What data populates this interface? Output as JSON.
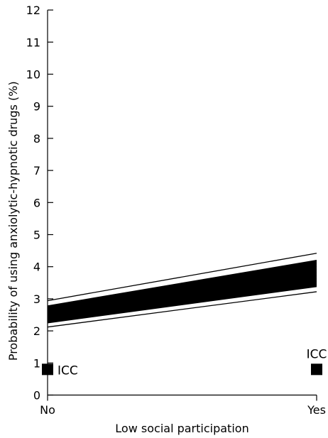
{
  "chart_data": {
    "type": "line",
    "title": "",
    "xlabel": "Low social participation",
    "ylabel": "Probability of using anxiolytic-hypnotic drugs (%)",
    "categories": [
      "No",
      "Yes"
    ],
    "ylim": [
      0,
      12
    ],
    "yticks": [
      0,
      1,
      2,
      3,
      4,
      5,
      6,
      7,
      8,
      9,
      10,
      11,
      12
    ],
    "grid": false,
    "series_band": {
      "description_none": "",
      "lines": [
        {
          "values": [
            2.12,
            3.22
          ]
        },
        {
          "values": [
            2.25,
            3.38
          ]
        },
        {
          "values": [
            2.32,
            3.45
          ]
        },
        {
          "values": [
            2.4,
            3.55
          ]
        },
        {
          "values": [
            2.47,
            3.63
          ]
        },
        {
          "values": [
            2.55,
            3.72
          ]
        },
        {
          "values": [
            2.6,
            3.82
          ]
        },
        {
          "values": [
            2.65,
            3.92
          ]
        },
        {
          "values": [
            2.7,
            4.02
          ]
        },
        {
          "values": [
            2.73,
            4.1
          ]
        },
        {
          "values": [
            2.78,
            4.2
          ]
        },
        {
          "values": [
            2.94,
            4.42
          ]
        }
      ],
      "fill_range": {
        "lower": [
          2.25,
          3.38
        ],
        "upper": [
          2.78,
          4.2
        ]
      }
    },
    "icc_markers": [
      {
        "category": "No",
        "value": 0.8,
        "label": "ICC"
      },
      {
        "category": "Yes",
        "value": 0.8,
        "label": "ICC"
      }
    ]
  }
}
